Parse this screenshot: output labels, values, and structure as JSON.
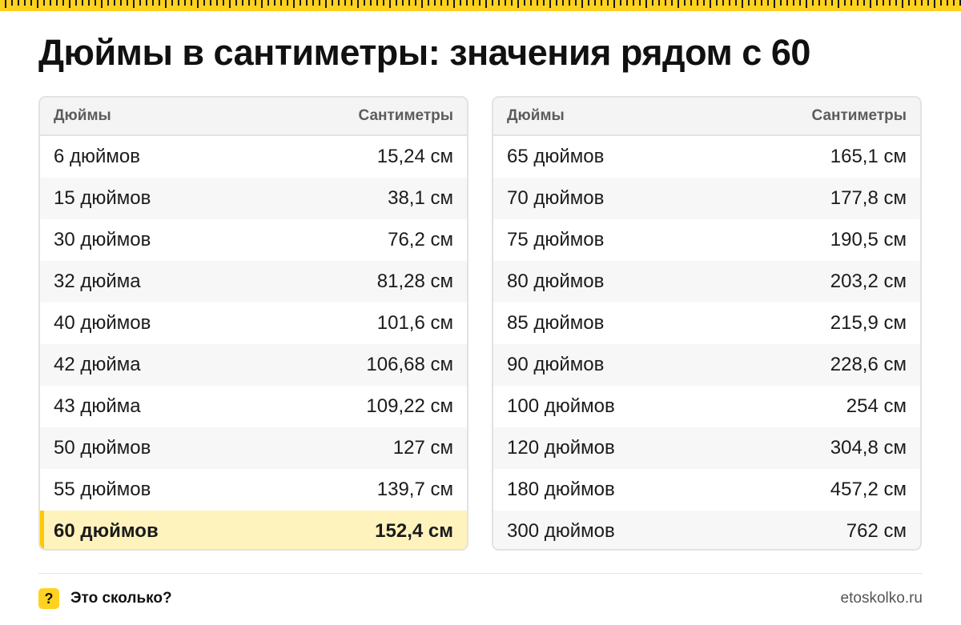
{
  "title": "Дюймы в сантиметры: значения рядом с 60",
  "headers": {
    "inches": "Дюймы",
    "cm": "Сантиметры"
  },
  "left_rows": [
    {
      "inches": "6 дюймов",
      "cm": "15,24 см"
    },
    {
      "inches": "15 дюймов",
      "cm": "38,1 см"
    },
    {
      "inches": "30 дюймов",
      "cm": "76,2 см"
    },
    {
      "inches": "32 дюйма",
      "cm": "81,28 см"
    },
    {
      "inches": "40 дюймов",
      "cm": "101,6 см"
    },
    {
      "inches": "42 дюйма",
      "cm": "106,68 см"
    },
    {
      "inches": "43 дюйма",
      "cm": "109,22 см"
    },
    {
      "inches": "50 дюймов",
      "cm": "127 см"
    },
    {
      "inches": "55 дюймов",
      "cm": "139,7 см"
    },
    {
      "inches": "60 дюймов",
      "cm": "152,4 см",
      "highlighted": true
    }
  ],
  "right_rows": [
    {
      "inches": "65 дюймов",
      "cm": "165,1 см"
    },
    {
      "inches": "70 дюймов",
      "cm": "177,8 см"
    },
    {
      "inches": "75 дюймов",
      "cm": "190,5 см"
    },
    {
      "inches": "80 дюймов",
      "cm": "203,2 см"
    },
    {
      "inches": "85 дюймов",
      "cm": "215,9 см"
    },
    {
      "inches": "90 дюймов",
      "cm": "228,6 см"
    },
    {
      "inches": "100 дюймов",
      "cm": "254 см"
    },
    {
      "inches": "120 дюймов",
      "cm": "304,8 см"
    },
    {
      "inches": "180 дюймов",
      "cm": "457,2 см"
    },
    {
      "inches": "300 дюймов",
      "cm": "762 см"
    }
  ],
  "footer": {
    "badge_glyph": "?",
    "brand": "Это сколько?",
    "site": "etoskolko.ru"
  },
  "colors": {
    "accent": "#ffd21f",
    "highlight_row": "#fff3bd",
    "highlight_bar": "#ffc800"
  }
}
